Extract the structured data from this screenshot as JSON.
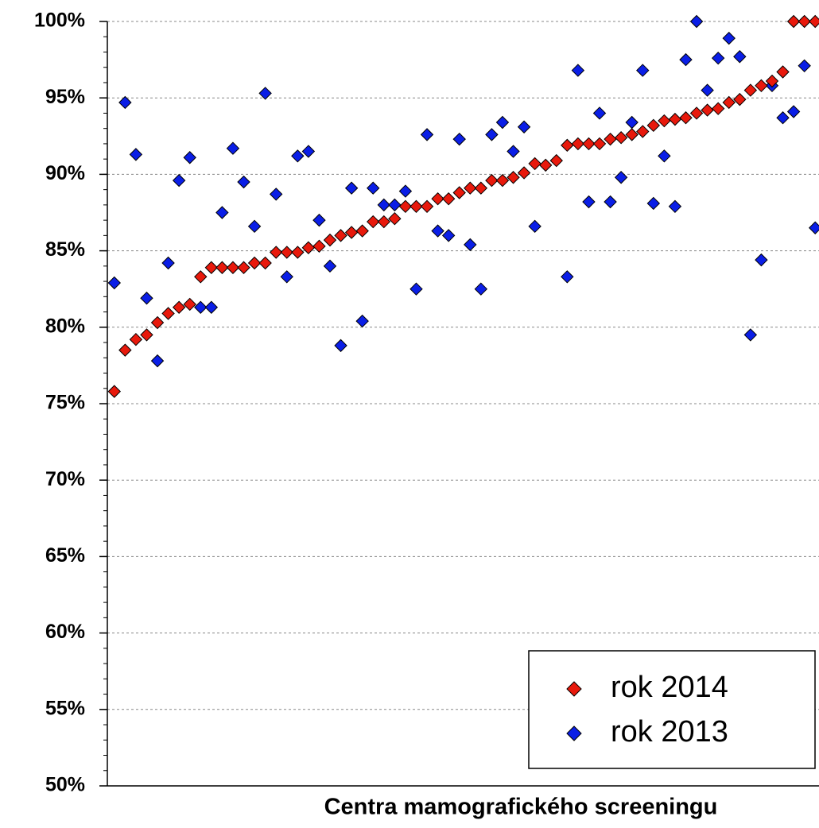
{
  "chart_data": {
    "type": "scatter",
    "x_label": "Centra mamografického screeningu",
    "ylim": [
      50,
      100
    ],
    "yticks": [
      {
        "value": 50,
        "label": "50%"
      },
      {
        "value": 55,
        "label": "55%"
      },
      {
        "value": 60,
        "label": "60%"
      },
      {
        "value": 65,
        "label": "65%"
      },
      {
        "value": 70,
        "label": "70%"
      },
      {
        "value": 75,
        "label": "75%"
      },
      {
        "value": 80,
        "label": "80%"
      },
      {
        "value": 85,
        "label": "85%"
      },
      {
        "value": 90,
        "label": "90%"
      },
      {
        "value": 95,
        "label": "95%"
      },
      {
        "value": 100,
        "label": "100%"
      }
    ],
    "grid": true,
    "legend": "lower right",
    "series": [
      {
        "name": "rok 2014",
        "color": "#e8190c",
        "values": [
          75.8,
          78.5,
          79.2,
          79.5,
          80.3,
          80.9,
          81.3,
          81.5,
          83.3,
          83.9,
          83.9,
          83.9,
          83.9,
          84.2,
          84.2,
          84.9,
          84.9,
          84.9,
          85.2,
          85.3,
          85.7,
          86.0,
          86.2,
          86.3,
          86.9,
          86.9,
          87.1,
          87.9,
          87.9,
          87.9,
          88.4,
          88.4,
          88.8,
          89.1,
          89.1,
          89.6,
          89.6,
          89.8,
          90.1,
          90.7,
          90.6,
          90.9,
          91.9,
          92.0,
          92.0,
          92.0,
          92.3,
          92.4,
          92.6,
          92.8,
          93.2,
          93.5,
          93.6,
          93.7,
          94.0,
          94.2,
          94.3,
          94.7,
          94.9,
          95.5,
          95.8,
          96.1,
          96.7,
          100,
          100,
          100
        ]
      },
      {
        "name": "rok 2013",
        "color": "#0a1ee6",
        "values": [
          82.9,
          94.7,
          91.3,
          81.9,
          77.8,
          84.2,
          89.6,
          91.1,
          81.3,
          81.3,
          87.5,
          91.7,
          89.5,
          86.6,
          95.3,
          88.7,
          83.3,
          91.2,
          91.5,
          87.0,
          84.0,
          78.8,
          89.1,
          80.4,
          89.1,
          88.0,
          88.0,
          88.9,
          82.5,
          92.6,
          86.3,
          86.0,
          92.3,
          85.4,
          82.5,
          92.6,
          93.4,
          91.5,
          93.1,
          86.6,
          null,
          null,
          83.3,
          96.8,
          88.2,
          94.0,
          88.2,
          89.8,
          93.4,
          96.8,
          88.1,
          91.2,
          87.9,
          97.5,
          100,
          95.5,
          97.6,
          98.9,
          97.7,
          79.5,
          84.4,
          95.8,
          93.7,
          94.1,
          97.1,
          86.5
        ]
      }
    ]
  }
}
